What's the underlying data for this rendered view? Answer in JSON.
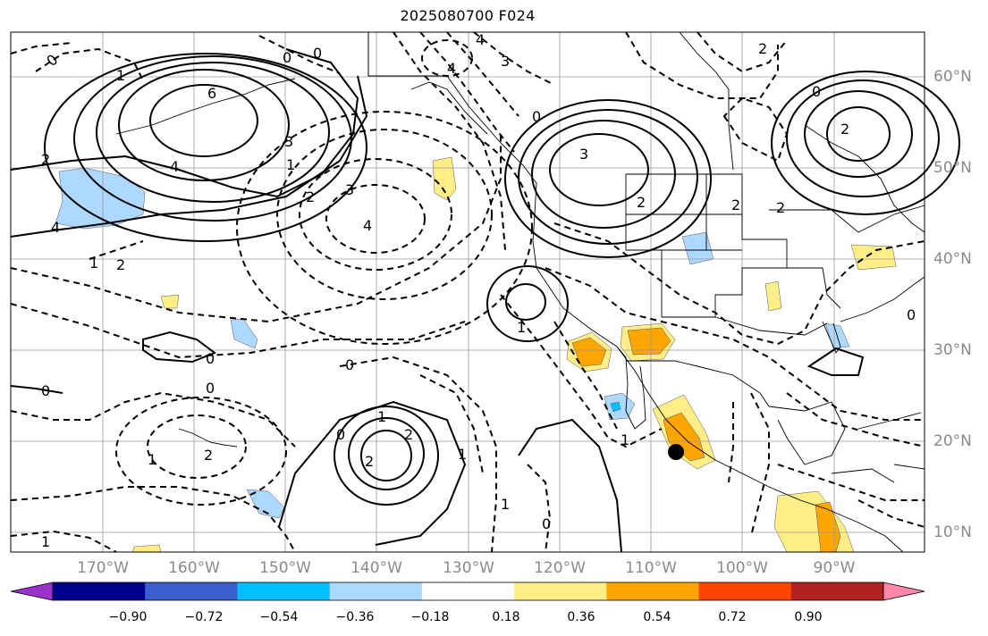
{
  "title": "2025080700 F024",
  "lon_labels": [
    "170°W",
    "160°W",
    "150°W",
    "140°W",
    "130°W",
    "120°W",
    "110°W",
    "100°W",
    "90°W"
  ],
  "lat_labels": [
    "60°N",
    "50°N",
    "40°N",
    "30°N",
    "20°N",
    "10°N"
  ],
  "colorbar": {
    "colors": [
      "#9932cc",
      "#00008b",
      "#3a5fcd",
      "#00bfff",
      "#add8ff",
      "#ffffff",
      "#ffee88",
      "#ffa500",
      "#ff4500",
      "#b22222",
      "#ff88aa"
    ],
    "tick_labels": [
      "−0.90",
      "−0.72",
      "−0.54",
      "−0.36",
      "−0.18",
      "0.18",
      "0.36",
      "0.54",
      "0.72",
      "0.90"
    ]
  },
  "contour_labels": [
    "0",
    "0",
    "4",
    "4",
    "2",
    "3",
    "6",
    "4",
    "0",
    "1",
    "2",
    "1",
    "4",
    "2",
    "3",
    "3",
    "4",
    "2",
    "1",
    "0",
    "0",
    "1",
    "2",
    "2",
    "1",
    "1",
    "0",
    "2",
    "0",
    "1",
    "3",
    "2",
    "2",
    "2",
    "0",
    "0",
    "2",
    "1",
    "1",
    "0",
    "1",
    "0",
    "0"
  ],
  "marker": "storm-center"
}
